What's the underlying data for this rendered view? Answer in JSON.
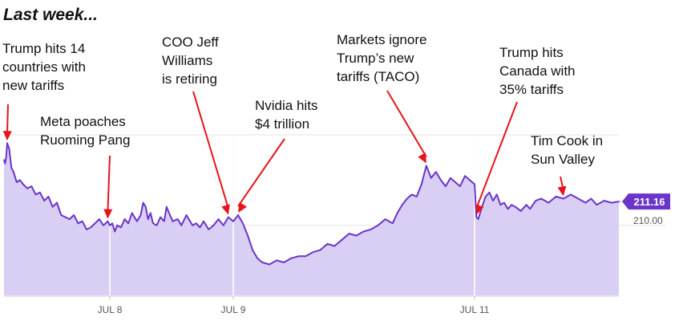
{
  "header": {
    "title": "Last week..."
  },
  "colors": {
    "line": "#6a35c9",
    "fill": "#d9cef3",
    "arrow": "#e8131b",
    "grid": "#e3e3e3",
    "badge": "#6a35c9"
  },
  "chart_data": {
    "type": "area",
    "title": "",
    "xlabel": "",
    "ylabel": "",
    "x_ticks": [
      {
        "label": "JUL 8",
        "x": 1
      },
      {
        "label": "JUL 9",
        "x": 2
      },
      {
        "label": "JUL 11",
        "x": 3
      }
    ],
    "y_ticks": [
      {
        "label": "210.00",
        "value": 210.0
      }
    ],
    "ylim": [
      206.6,
      214.4
    ],
    "last_price": {
      "label": "211.16",
      "value": 211.16
    },
    "series": [
      {
        "values": [
          [
            0.0,
            213.2
          ],
          [
            0.01,
            213.0
          ],
          [
            0.02,
            213.3
          ],
          [
            0.03,
            214.0
          ],
          [
            0.05,
            213.7
          ],
          [
            0.07,
            212.8
          ],
          [
            0.09,
            212.6
          ],
          [
            0.12,
            212.1
          ],
          [
            0.15,
            212.2
          ],
          [
            0.18,
            212.0
          ],
          [
            0.22,
            211.8
          ],
          [
            0.26,
            211.9
          ],
          [
            0.3,
            211.5
          ],
          [
            0.34,
            211.6
          ],
          [
            0.38,
            211.2
          ],
          [
            0.42,
            211.4
          ],
          [
            0.46,
            210.9
          ],
          [
            0.5,
            211.1
          ],
          [
            0.54,
            210.5
          ],
          [
            0.58,
            210.4
          ],
          [
            0.62,
            210.3
          ],
          [
            0.66,
            210.5
          ],
          [
            0.7,
            210.1
          ],
          [
            0.74,
            210.2
          ],
          [
            0.78,
            209.8
          ],
          [
            0.82,
            209.9
          ],
          [
            0.86,
            210.1
          ],
          [
            0.9,
            210.3
          ],
          [
            0.94,
            210.0
          ],
          [
            0.98,
            210.2
          ],
          [
            1.0,
            210.0
          ],
          [
            1.02,
            210.1
          ],
          [
            1.04,
            209.7
          ],
          [
            1.06,
            210.0
          ],
          [
            1.09,
            209.9
          ],
          [
            1.12,
            210.3
          ],
          [
            1.15,
            210.1
          ],
          [
            1.18,
            210.6
          ],
          [
            1.2,
            210.4
          ],
          [
            1.22,
            210.2
          ],
          [
            1.25,
            210.5
          ],
          [
            1.27,
            211.1
          ],
          [
            1.29,
            210.9
          ],
          [
            1.31,
            210.3
          ],
          [
            1.33,
            210.6
          ],
          [
            1.35,
            210.1
          ],
          [
            1.38,
            210.0
          ],
          [
            1.41,
            210.4
          ],
          [
            1.44,
            210.2
          ],
          [
            1.46,
            210.9
          ],
          [
            1.48,
            210.6
          ],
          [
            1.51,
            210.2
          ],
          [
            1.55,
            210.3
          ],
          [
            1.58,
            210.0
          ],
          [
            1.62,
            210.5
          ],
          [
            1.64,
            210.3
          ],
          [
            1.67,
            210.0
          ],
          [
            1.7,
            210.1
          ],
          [
            1.73,
            209.9
          ],
          [
            1.76,
            210.2
          ],
          [
            1.8,
            209.8
          ],
          [
            1.84,
            210.0
          ],
          [
            1.88,
            210.3
          ],
          [
            1.92,
            210.0
          ],
          [
            1.96,
            210.4
          ],
          [
            2.0,
            210.2
          ],
          [
            2.02,
            210.5
          ],
          [
            2.04,
            210.1
          ],
          [
            2.06,
            209.5
          ],
          [
            2.08,
            208.8
          ],
          [
            2.1,
            208.4
          ],
          [
            2.12,
            208.2
          ],
          [
            2.15,
            208.1
          ],
          [
            2.18,
            208.3
          ],
          [
            2.21,
            208.2
          ],
          [
            2.24,
            208.4
          ],
          [
            2.27,
            208.5
          ],
          [
            2.3,
            208.5
          ],
          [
            2.33,
            208.7
          ],
          [
            2.36,
            208.8
          ],
          [
            2.39,
            209.1
          ],
          [
            2.42,
            209.0
          ],
          [
            2.45,
            209.3
          ],
          [
            2.48,
            209.6
          ],
          [
            2.51,
            209.5
          ],
          [
            2.54,
            209.7
          ],
          [
            2.57,
            209.8
          ],
          [
            2.6,
            210.0
          ],
          [
            2.63,
            210.3
          ],
          [
            2.66,
            210.1
          ],
          [
            2.68,
            210.6
          ],
          [
            2.7,
            211.0
          ],
          [
            2.72,
            211.3
          ],
          [
            2.74,
            211.5
          ],
          [
            2.76,
            211.4
          ],
          [
            2.78,
            212.0
          ],
          [
            2.8,
            212.9
          ],
          [
            2.82,
            212.3
          ],
          [
            2.84,
            212.6
          ],
          [
            2.86,
            212.2
          ],
          [
            2.88,
            211.9
          ],
          [
            2.9,
            212.3
          ],
          [
            2.92,
            212.1
          ],
          [
            2.94,
            211.9
          ],
          [
            2.96,
            212.4
          ],
          [
            2.98,
            212.2
          ],
          [
            3.0,
            212.0
          ],
          [
            3.01,
            210.4
          ],
          [
            3.02,
            210.3
          ],
          [
            3.04,
            210.9
          ],
          [
            3.06,
            211.4
          ],
          [
            3.08,
            211.6
          ],
          [
            3.1,
            211.2
          ],
          [
            3.12,
            211.5
          ],
          [
            3.14,
            211.0
          ],
          [
            3.16,
            211.1
          ],
          [
            3.18,
            210.8
          ],
          [
            3.2,
            211.0
          ],
          [
            3.22,
            210.9
          ],
          [
            3.25,
            210.7
          ],
          [
            3.28,
            211.0
          ],
          [
            3.3,
            210.8
          ],
          [
            3.33,
            211.2
          ],
          [
            3.36,
            211.3
          ],
          [
            3.4,
            211.1
          ],
          [
            3.44,
            211.4
          ],
          [
            3.48,
            211.3
          ],
          [
            3.52,
            211.5
          ],
          [
            3.56,
            211.3
          ],
          [
            3.6,
            211.1
          ],
          [
            3.63,
            211.3
          ],
          [
            3.66,
            211.0
          ],
          [
            3.7,
            211.2
          ],
          [
            3.74,
            211.1
          ],
          [
            3.78,
            211.16
          ]
        ]
      }
    ],
    "annotations": [
      {
        "text": [
          "Trump hits 14",
          "countries with",
          "new tariffs"
        ],
        "x": 0.03,
        "value": 214.0
      },
      {
        "text": [
          "Meta poaches",
          "Ruoming Pang"
        ],
        "x": 0.98,
        "value": 210.2
      },
      {
        "text": [
          "COO Jeff",
          "Williams",
          "is retiring"
        ],
        "x": 1.96,
        "value": 210.4
      },
      {
        "text": [
          "Nvidia hits",
          "$4 trillion"
        ],
        "x": 2.02,
        "value": 210.5
      },
      {
        "text": [
          "Markets ignore",
          "Trump’s new",
          "tariffs (TACO)"
        ],
        "x": 2.8,
        "value": 212.9
      },
      {
        "text": [
          "Trump hits",
          "Canada with",
          "35% tariffs"
        ],
        "x": 3.01,
        "value": 210.4
      },
      {
        "text": [
          "Tim Cook in",
          "Sun Valley"
        ],
        "x": 3.48,
        "value": 211.3
      }
    ]
  }
}
